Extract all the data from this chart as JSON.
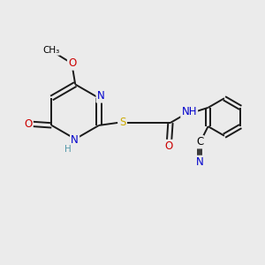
{
  "bg_color": "#ebebeb",
  "atom_colors": {
    "C": "#000000",
    "N": "#0000cc",
    "O": "#cc0000",
    "S": "#ccaa00",
    "H": "#5599aa"
  },
  "bond_color": "#1a1a1a",
  "font_size": 8.5,
  "fig_size": [
    3.0,
    3.0
  ],
  "dpi": 100,
  "scale": 1.0
}
